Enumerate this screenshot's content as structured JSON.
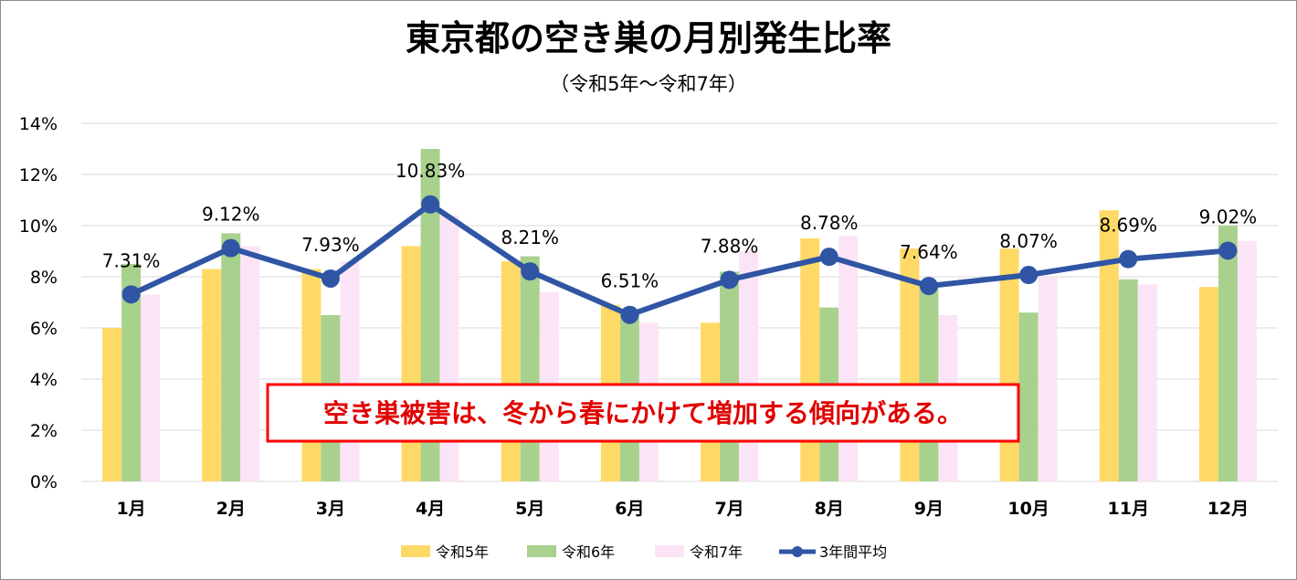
{
  "chart_data": {
    "type": "bar",
    "title": "東京都の空き巣の月別発生比率",
    "subtitle": "（令和5年～令和7年）",
    "categories": [
      "1月",
      "2月",
      "3月",
      "4月",
      "5月",
      "6月",
      "7月",
      "8月",
      "9月",
      "10月",
      "11月",
      "12月"
    ],
    "ylim": [
      0,
      14
    ],
    "yticks": [
      0,
      2,
      4,
      6,
      8,
      10,
      12,
      14
    ],
    "ytick_labels": [
      "0%",
      "2%",
      "4%",
      "6%",
      "8%",
      "10%",
      "12%",
      "14%"
    ],
    "grid": true,
    "legend_position": "bottom",
    "series": [
      {
        "name": "令和5年",
        "kind": "bar",
        "color": "#ffd966",
        "values": [
          6.0,
          8.3,
          8.3,
          9.2,
          8.6,
          6.9,
          6.2,
          9.5,
          9.1,
          9.1,
          10.6,
          7.6
        ]
      },
      {
        "name": "令和6年",
        "kind": "bar",
        "color": "#a9d18e",
        "values": [
          8.5,
          9.7,
          6.5,
          13.0,
          8.8,
          6.5,
          8.2,
          6.8,
          7.8,
          6.6,
          7.9,
          10.0
        ]
      },
      {
        "name": "令和7年",
        "kind": "bar",
        "color": "#fce4f7",
        "values": [
          7.3,
          9.2,
          8.6,
          10.4,
          7.4,
          6.2,
          9.0,
          9.6,
          6.5,
          8.0,
          7.7,
          9.4
        ]
      },
      {
        "name": "3年間平均",
        "kind": "line",
        "color": "#2f55a4",
        "values": [
          7.31,
          9.12,
          7.93,
          10.83,
          8.21,
          6.51,
          7.88,
          8.78,
          7.64,
          8.07,
          8.69,
          9.02
        ],
        "labels": [
          "7.31%",
          "9.12%",
          "7.93%",
          "10.83%",
          "8.21%",
          "6.51%",
          "7.88%",
          "8.78%",
          "7.64%",
          "8.07%",
          "8.69%",
          "9.02%"
        ]
      }
    ],
    "annotation": "空き巣被害は、冬から春にかけて増加する傾向がある。",
    "annotation_color": "#ff0000"
  }
}
